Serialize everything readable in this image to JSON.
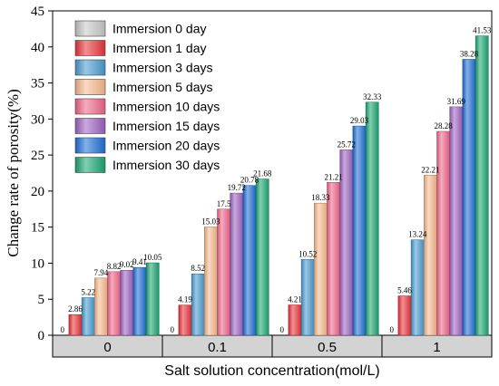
{
  "chart_data": {
    "type": "bar",
    "title": "",
    "xlabel": "Salt solution concentration(mol/L)",
    "ylabel": "Change rate of porosity(%)",
    "ylim": [
      0,
      45
    ],
    "yticks": [
      "0",
      "5",
      "10",
      "15",
      "20",
      "25",
      "30",
      "35",
      "40",
      "45"
    ],
    "categories": [
      "0",
      "0.1",
      "0.5",
      "1"
    ],
    "legend_position": "top-left",
    "grid": false,
    "series": [
      {
        "name": "Immersion 0 day",
        "color": "#c8c8c8",
        "values": [
          0,
          0,
          0,
          0
        ],
        "labels": [
          "0",
          "0",
          "0",
          "0"
        ]
      },
      {
        "name": "Immersion 1 day",
        "color": "#e8343b",
        "values": [
          2.86,
          4.19,
          4.21,
          5.46
        ],
        "labels": [
          "2.86",
          "4.19",
          "4.21",
          "5.46"
        ]
      },
      {
        "name": "Immersion 3 days",
        "color": "#4a9bd0",
        "values": [
          5.22,
          8.52,
          10.52,
          13.24
        ],
        "labels": [
          "5.22",
          "8.52",
          "10.52",
          "13.24"
        ]
      },
      {
        "name": "Immersion 5 days",
        "color": "#f8b98e",
        "values": [
          7.94,
          15.03,
          18.33,
          22.21
        ],
        "labels": [
          "7.94",
          "15.03",
          "18.33",
          "22.21"
        ]
      },
      {
        "name": "Immersion 10 days",
        "color": "#f0668a",
        "values": [
          8.82,
          17.5,
          21.21,
          28.28
        ],
        "labels": [
          "8.82",
          "17.5",
          "21.21",
          "28.28"
        ]
      },
      {
        "name": "Immersion 15 days",
        "color": "#9e63c1",
        "values": [
          9.02,
          19.72,
          25.72,
          31.69
        ],
        "labels": [
          "9.02",
          "19.72",
          "25.72",
          "31.69"
        ]
      },
      {
        "name": "Immersion 20 days",
        "color": "#1f6fd6",
        "values": [
          9.41,
          20.78,
          29.03,
          38.28
        ],
        "labels": [
          "9.41",
          "20.78",
          "29.03",
          "38.28"
        ]
      },
      {
        "name": "Immersion 30 days",
        "color": "#1ea672",
        "values": [
          10.05,
          21.68,
          32.33,
          41.53
        ],
        "labels": [
          "10.05",
          "21.68",
          "32.33",
          "41.53"
        ]
      }
    ]
  }
}
